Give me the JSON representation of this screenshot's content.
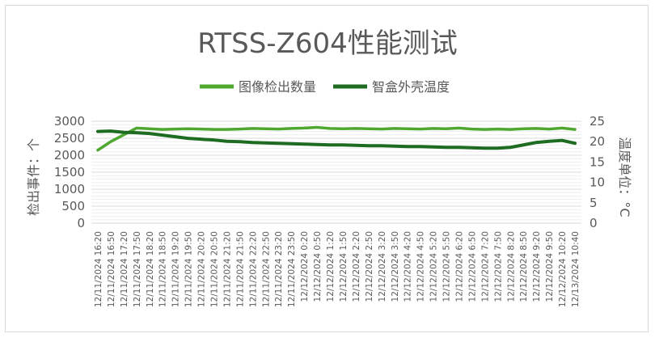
{
  "chart_data": {
    "type": "line",
    "title": "RTSS-Z604性能测试",
    "ylabel": "检出事件：个",
    "y2label": "温度单位：°C",
    "ylim": [
      0,
      3000
    ],
    "y_ticks": [
      0,
      500,
      1000,
      1500,
      2000,
      2500,
      3000
    ],
    "y2lim": [
      0,
      25
    ],
    "y2_ticks": [
      0,
      5,
      10,
      15,
      20,
      25
    ],
    "grid": true,
    "legend": "top",
    "categories": [
      "12/11/2024 16:20",
      "12/11/2024 16:50",
      "12/11/2024 17:20",
      "12/11/2024 17:50",
      "12/11/2024 18:20",
      "12/11/2024 18:50",
      "12/11/2024 19:20",
      "12/11/2024 19:50",
      "12/11/2024 20:20",
      "12/11/2024 20:50",
      "12/11/2024 21:20",
      "12/11/2024 21:50",
      "12/11/2024 22:20",
      "12/11/2024 22:50",
      "12/11/2024 23:20",
      "12/11/2024 23:50",
      "12/12/2024 0:20",
      "12/12/2024 0:50",
      "12/12/2024 1:20",
      "12/12/2024 1:50",
      "12/12/2024 2:20",
      "12/12/2024 2:50",
      "12/12/2024 3:20",
      "12/12/2024 3:50",
      "12/12/2024 4:20",
      "12/12/2024 4:50",
      "12/12/2024 5:20",
      "12/12/2024 5:50",
      "12/12/2024 6:20",
      "12/12/2024 6:50",
      "12/12/2024 7:20",
      "12/12/2024 7:50",
      "12/12/2024 8:20",
      "12/12/2024 8:50",
      "12/12/2024 9:20",
      "12/12/2024 9:50",
      "12/12/2024 10:20",
      "12/13/2024 10:40"
    ],
    "series": [
      {
        "name": "图像检出数量",
        "axis": "left",
        "color": "#4ea72e",
        "values": [
          2150,
          2400,
          2600,
          2800,
          2780,
          2760,
          2770,
          2780,
          2770,
          2760,
          2760,
          2770,
          2790,
          2780,
          2770,
          2790,
          2800,
          2820,
          2790,
          2780,
          2790,
          2780,
          2770,
          2790,
          2780,
          2770,
          2790,
          2780,
          2800,
          2770,
          2760,
          2770,
          2760,
          2780,
          2790,
          2770,
          2800,
          2760
        ]
      },
      {
        "name": "智盒外壳温度",
        "axis": "right",
        "color": "#1e6b22",
        "values": [
          22.5,
          22.6,
          22.3,
          22.2,
          22.0,
          21.6,
          21.2,
          20.8,
          20.6,
          20.4,
          20.1,
          20.0,
          19.8,
          19.7,
          19.6,
          19.5,
          19.4,
          19.3,
          19.2,
          19.2,
          19.1,
          19.0,
          19.0,
          18.9,
          18.8,
          18.8,
          18.7,
          18.6,
          18.6,
          18.5,
          18.4,
          18.4,
          18.6,
          19.2,
          19.8,
          20.1,
          20.3,
          19.6
        ]
      }
    ]
  }
}
